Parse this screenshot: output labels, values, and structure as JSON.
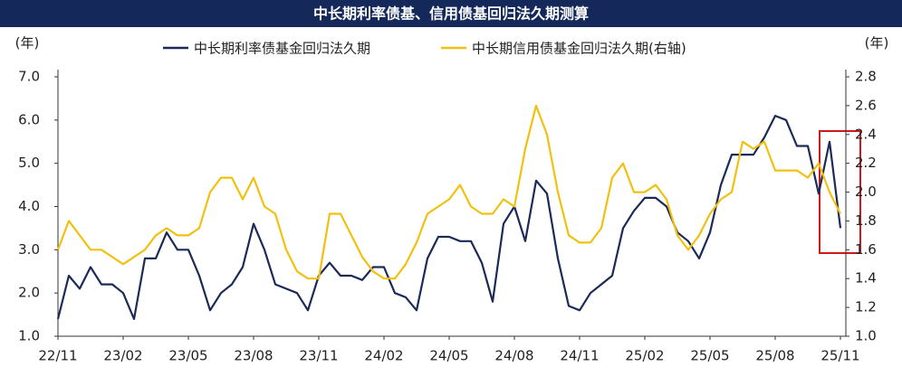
{
  "chart_data": {
    "type": "line",
    "title": "中长期利率债基、信用债基回归法久期测算",
    "ylabel": "(年)",
    "y2label": "(年)",
    "categories": [
      "22/11",
      null,
      null,
      null,
      null,
      null,
      "23/02",
      null,
      null,
      null,
      null,
      null,
      "23/05",
      null,
      null,
      null,
      null,
      null,
      "23/08",
      null,
      null,
      null,
      null,
      null,
      "23/11",
      null,
      null,
      null,
      null,
      null,
      "24/02",
      null,
      null,
      null,
      null,
      null,
      "24/05",
      null,
      null,
      null,
      null,
      null,
      "24/08",
      null,
      null,
      null,
      null,
      null,
      "24/11",
      null,
      null,
      null,
      null,
      null,
      "25/02",
      null,
      null,
      null,
      null,
      null,
      "25/05",
      null,
      null,
      null,
      null,
      null,
      "25/08",
      null,
      null,
      null,
      null,
      null,
      "25/11"
    ],
    "series": [
      {
        "name": "中长期利率债基金回归法久期",
        "color": "#1b2a57",
        "values": [
          1.4,
          2.4,
          2.1,
          2.6,
          2.2,
          2.2,
          2.0,
          1.4,
          2.8,
          2.8,
          3.4,
          3.0,
          3.0,
          2.4,
          1.6,
          2.0,
          2.2,
          2.6,
          3.6,
          3.0,
          2.2,
          2.1,
          2.0,
          1.6,
          2.4,
          2.7,
          2.4,
          2.4,
          2.3,
          2.6,
          2.6,
          2.0,
          1.9,
          1.6,
          2.8,
          3.3,
          3.3,
          3.2,
          3.2,
          2.7,
          1.8,
          3.6,
          4.0,
          3.2,
          4.6,
          4.3,
          2.8,
          1.7,
          1.6,
          2.0,
          2.2,
          2.4,
          3.5,
          3.9,
          4.2,
          4.2,
          4.0,
          3.4,
          3.2,
          2.8,
          3.4,
          4.5,
          5.2,
          5.2,
          5.2,
          5.6,
          6.1,
          6.0,
          5.4,
          5.4,
          4.3,
          5.5,
          3.5
        ]
      },
      {
        "name": "中长期信用债基金回归法久期(右轴)",
        "color": "#f2c10f",
        "axis": "y2",
        "values": [
          1.6,
          1.8,
          1.7,
          1.6,
          1.6,
          1.55,
          1.5,
          1.55,
          1.6,
          1.7,
          1.75,
          1.7,
          1.7,
          1.75,
          2.0,
          2.1,
          2.1,
          1.95,
          2.1,
          1.9,
          1.85,
          1.6,
          1.45,
          1.4,
          1.4,
          1.85,
          1.85,
          1.7,
          1.55,
          1.45,
          1.4,
          1.4,
          1.5,
          1.65,
          1.85,
          1.9,
          1.95,
          2.05,
          1.9,
          1.85,
          1.85,
          1.95,
          1.9,
          2.3,
          2.6,
          2.4,
          2.0,
          1.7,
          1.65,
          1.65,
          1.75,
          2.1,
          2.2,
          2.0,
          2.0,
          2.05,
          1.95,
          1.7,
          1.6,
          1.7,
          1.85,
          1.95,
          2.0,
          2.35,
          2.3,
          2.35,
          2.15,
          2.15,
          2.15,
          2.1,
          2.2,
          2.0,
          1.85
        ]
      }
    ],
    "ylim": [
      1,
      7
    ],
    "yticks": [
      {
        "value": 1,
        "label": "1.0"
      },
      {
        "value": 2,
        "label": "2.0"
      },
      {
        "value": 3,
        "label": "3.0"
      },
      {
        "value": 4,
        "label": "4.0"
      },
      {
        "value": 5,
        "label": "5.0"
      },
      {
        "value": 6,
        "label": "6.0"
      },
      {
        "value": 7,
        "label": "7.0"
      }
    ],
    "y2lim": [
      1,
      2.8
    ],
    "y2ticks": [
      {
        "value": 1,
        "label": "1.0"
      },
      1.2,
      1.4,
      1.6,
      1.8,
      {
        "value": 2,
        "label": "2.0"
      },
      2.2,
      2.4,
      2.6,
      2.8
    ],
    "grid": false,
    "legend": "top"
  }
}
